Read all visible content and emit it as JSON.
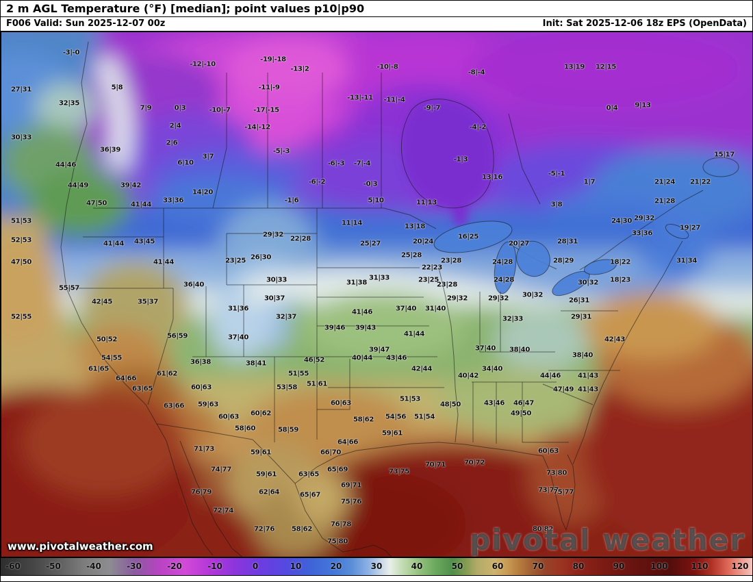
{
  "header": {
    "title": "2 m AGL Temperature (°F) [median]; point values p10|p90",
    "valid": "F006 Valid: Sun 2025-12-07 00z",
    "init": "Init: Sat 2025-12-06 18z EPS (OpenData)"
  },
  "watermark": {
    "url_text": "www.pivotalweather.com",
    "brand_text": "pivotal weather"
  },
  "colorbar": {
    "unit": "°F",
    "min": -60,
    "max": 120,
    "ticks": [
      -60,
      -50,
      -40,
      -30,
      -20,
      -10,
      0,
      10,
      20,
      30,
      40,
      50,
      60,
      70,
      80,
      90,
      100,
      110,
      120
    ],
    "stops": [
      [
        -60,
        "#2e2e2e"
      ],
      [
        -52,
        "#474747"
      ],
      [
        -46,
        "#5f5f5f"
      ],
      [
        -40,
        "#7d7d7d"
      ],
      [
        -34,
        "#8d8d91"
      ],
      [
        -28,
        "#8a5aa0"
      ],
      [
        -22,
        "#b843c2"
      ],
      [
        -16,
        "#d24ad8"
      ],
      [
        -10,
        "#b337d8"
      ],
      [
        -4,
        "#8c35dc"
      ],
      [
        2,
        "#6d3ce0"
      ],
      [
        8,
        "#5548e0"
      ],
      [
        14,
        "#3f63d8"
      ],
      [
        20,
        "#4579d8"
      ],
      [
        24,
        "#5b8fd8"
      ],
      [
        28,
        "#8fb2e4"
      ],
      [
        31,
        "#c8d8e8"
      ],
      [
        33,
        "#e9efe9"
      ],
      [
        36,
        "#c4dcb4"
      ],
      [
        40,
        "#94c17e"
      ],
      [
        44,
        "#6aa95d"
      ],
      [
        48,
        "#4f8f4a"
      ],
      [
        51,
        "#7f9b50"
      ],
      [
        54,
        "#b3ab68"
      ],
      [
        58,
        "#cdb26e"
      ],
      [
        61,
        "#c99c55"
      ],
      [
        64,
        "#b67c3e"
      ],
      [
        67,
        "#a05f33"
      ],
      [
        70,
        "#96452a"
      ],
      [
        74,
        "#9c3322"
      ],
      [
        78,
        "#8e241a"
      ],
      [
        84,
        "#7c1b14"
      ],
      [
        92,
        "#671310"
      ],
      [
        100,
        "#530d0c"
      ],
      [
        106,
        "#7e1210"
      ],
      [
        110,
        "#b03226"
      ],
      [
        114,
        "#e06a5a"
      ],
      [
        118,
        "#f0a89e"
      ],
      [
        120,
        "#f6c9c2"
      ]
    ]
  },
  "map_points": [
    [
      103,
      76,
      "-3|-0"
    ],
    [
      295,
      93,
      "-12|-10"
    ],
    [
      398,
      86,
      "-19|-18"
    ],
    [
      437,
      100,
      "-13|2"
    ],
    [
      565,
      97,
      "-10|-8"
    ],
    [
      695,
      105,
      "-8|-4"
    ],
    [
      838,
      97,
      "13|19"
    ],
    [
      884,
      97,
      "12|15"
    ],
    [
      30,
      130,
      "27|31"
    ],
    [
      170,
      127,
      "5|8"
    ],
    [
      392,
      127,
      "-11|-9"
    ],
    [
      525,
      142,
      "-13|-11"
    ],
    [
      212,
      157,
      "7|9"
    ],
    [
      262,
      157,
      "0|3"
    ],
    [
      320,
      160,
      "-10|-7"
    ],
    [
      388,
      160,
      "-17|-15"
    ],
    [
      575,
      145,
      "-11|-4"
    ],
    [
      630,
      157,
      "-9|-7"
    ],
    [
      893,
      157,
      "0|4"
    ],
    [
      938,
      153,
      "9|13"
    ],
    [
      100,
      150,
      "32|35"
    ],
    [
      30,
      200,
      "30|33"
    ],
    [
      255,
      183,
      "2|4"
    ],
    [
      375,
      185,
      "-14|-12"
    ],
    [
      697,
      185,
      "-4|-2"
    ],
    [
      250,
      208,
      "2|6"
    ],
    [
      410,
      220,
      "-5|-3"
    ],
    [
      160,
      218,
      "36|39"
    ],
    [
      1057,
      225,
      "15|17"
    ],
    [
      95,
      240,
      "44|46"
    ],
    [
      270,
      237,
      "6|10"
    ],
    [
      303,
      228,
      "3|7"
    ],
    [
      490,
      238,
      "-6|-3"
    ],
    [
      528,
      238,
      "-7|-4"
    ],
    [
      672,
      232,
      "-1|3"
    ],
    [
      190,
      270,
      "39|42"
    ],
    [
      295,
      280,
      "14|20"
    ],
    [
      462,
      265,
      "-6|-2"
    ],
    [
      540,
      268,
      "-0|3"
    ],
    [
      718,
      258,
      "13|16"
    ],
    [
      812,
      253,
      "-5|-1"
    ],
    [
      860,
      265,
      "1|7"
    ],
    [
      970,
      265,
      "21|24"
    ],
    [
      1022,
      265,
      "21|22"
    ],
    [
      113,
      270,
      "44|49"
    ],
    [
      140,
      296,
      "47|50"
    ],
    [
      205,
      298,
      "41|44"
    ],
    [
      252,
      292,
      "33|36"
    ],
    [
      425,
      292,
      "-1|6"
    ],
    [
      548,
      292,
      "5|10"
    ],
    [
      622,
      295,
      "11|13"
    ],
    [
      812,
      298,
      "3|8"
    ],
    [
      970,
      293,
      "21|28"
    ],
    [
      907,
      322,
      "24|30"
    ],
    [
      940,
      318,
      "29|32"
    ],
    [
      1007,
      332,
      "19|27"
    ],
    [
      30,
      322,
      "51|53"
    ],
    [
      513,
      325,
      "11|14"
    ],
    [
      605,
      330,
      "13|18"
    ],
    [
      398,
      342,
      "29|32"
    ],
    [
      438,
      348,
      "22|28"
    ],
    [
      617,
      352,
      "20|24"
    ],
    [
      683,
      345,
      "16|25"
    ],
    [
      757,
      355,
      "20|27"
    ],
    [
      828,
      352,
      "28|31"
    ],
    [
      937,
      340,
      "33|36"
    ],
    [
      30,
      350,
      "52|53"
    ],
    [
      165,
      355,
      "41|44"
    ],
    [
      210,
      352,
      "43|45"
    ],
    [
      540,
      355,
      "25|27"
    ],
    [
      600,
      372,
      "25|28"
    ],
    [
      343,
      380,
      "23|25"
    ],
    [
      380,
      375,
      "26|30"
    ],
    [
      630,
      390,
      "22|23"
    ],
    [
      658,
      380,
      "23|28"
    ],
    [
      733,
      382,
      "24|28"
    ],
    [
      822,
      380,
      "28|29"
    ],
    [
      905,
      382,
      "18|22"
    ],
    [
      1002,
      380,
      "31|34"
    ],
    [
      30,
      382,
      "47|50"
    ],
    [
      238,
      382,
      "41|44"
    ],
    [
      403,
      408,
      "30|33"
    ],
    [
      553,
      405,
      "31|33"
    ],
    [
      625,
      408,
      "23|25"
    ],
    [
      652,
      415,
      "23|28"
    ],
    [
      735,
      408,
      "24|28"
    ],
    [
      858,
      412,
      "30|32"
    ],
    [
      905,
      408,
      "18|23"
    ],
    [
      100,
      420,
      "55|57"
    ],
    [
      282,
      415,
      "36|40"
    ],
    [
      520,
      412,
      "31|38"
    ],
    [
      148,
      440,
      "42|45"
    ],
    [
      215,
      440,
      "35|37"
    ],
    [
      400,
      435,
      "30|37"
    ],
    [
      667,
      435,
      "29|32"
    ],
    [
      727,
      435,
      "29|32"
    ],
    [
      777,
      430,
      "30|32"
    ],
    [
      845,
      438,
      "26|31"
    ],
    [
      347,
      450,
      "31|36"
    ],
    [
      417,
      462,
      "32|37"
    ],
    [
      528,
      455,
      "41|46"
    ],
    [
      592,
      450,
      "37|40"
    ],
    [
      635,
      450,
      "31|40"
    ],
    [
      748,
      465,
      "32|33"
    ],
    [
      848,
      462,
      "29|31"
    ],
    [
      30,
      462,
      "52|55"
    ],
    [
      488,
      478,
      "39|46"
    ],
    [
      533,
      478,
      "39|43"
    ],
    [
      258,
      490,
      "56|59"
    ],
    [
      347,
      492,
      "37|40"
    ],
    [
      604,
      487,
      "41|44"
    ],
    [
      553,
      510,
      "39|47"
    ],
    [
      708,
      508,
      "37|40"
    ],
    [
      758,
      510,
      "38|40"
    ],
    [
      897,
      495,
      "42|43"
    ],
    [
      155,
      495,
      "50|52"
    ],
    [
      162,
      522,
      "54|55"
    ],
    [
      143,
      538,
      "61|65"
    ],
    [
      292,
      528,
      "36|38"
    ],
    [
      373,
      530,
      "38|41"
    ],
    [
      458,
      525,
      "46|52"
    ],
    [
      528,
      522,
      "40|44"
    ],
    [
      578,
      522,
      "43|46"
    ],
    [
      615,
      538,
      "42|44"
    ],
    [
      683,
      548,
      "40|42"
    ],
    [
      718,
      538,
      "34|40"
    ],
    [
      803,
      548,
      "44|46"
    ],
    [
      850,
      518,
      "38|40"
    ],
    [
      858,
      548,
      "41|43"
    ],
    [
      243,
      545,
      "61|62"
    ],
    [
      183,
      552,
      "64|66"
    ],
    [
      207,
      567,
      "63|65"
    ],
    [
      435,
      545,
      "51|55"
    ],
    [
      418,
      565,
      "53|58"
    ],
    [
      462,
      560,
      "51|61"
    ],
    [
      293,
      565,
      "60|63"
    ],
    [
      253,
      592,
      "63|66"
    ],
    [
      303,
      590,
      "59|63"
    ],
    [
      333,
      608,
      "60|63"
    ],
    [
      380,
      603,
      "60|62"
    ],
    [
      497,
      588,
      "60|63"
    ],
    [
      598,
      582,
      "51|53"
    ],
    [
      577,
      608,
      "54|56"
    ],
    [
      619,
      608,
      "51|54"
    ],
    [
      657,
      590,
      "48|50"
    ],
    [
      721,
      588,
      "43|46"
    ],
    [
      764,
      588,
      "46|47"
    ],
    [
      760,
      603,
      "49|50"
    ],
    [
      822,
      568,
      "47|49"
    ],
    [
      858,
      568,
      "41|43"
    ],
    [
      357,
      625,
      "58|60"
    ],
    [
      420,
      627,
      "58|59"
    ],
    [
      530,
      612,
      "58|62"
    ],
    [
      572,
      632,
      "59|61"
    ],
    [
      507,
      645,
      "64|66"
    ],
    [
      800,
      658,
      "60|63"
    ],
    [
      297,
      655,
      "71|73"
    ],
    [
      380,
      660,
      "59|61"
    ],
    [
      482,
      660,
      "66|70"
    ],
    [
      322,
      685,
      "74|77"
    ],
    [
      492,
      685,
      "65|69"
    ],
    [
      582,
      688,
      "73|75"
    ],
    [
      635,
      678,
      "70|71"
    ],
    [
      692,
      675,
      "70|72"
    ],
    [
      388,
      692,
      "59|61"
    ],
    [
      450,
      692,
      "63|65"
    ],
    [
      512,
      708,
      "69|71"
    ],
    [
      812,
      690,
      "73|80"
    ],
    [
      800,
      715,
      "73|77"
    ],
    [
      822,
      718,
      "75|77"
    ],
    [
      293,
      718,
      "76|79"
    ],
    [
      392,
      718,
      "62|64"
    ],
    [
      452,
      722,
      "65|67"
    ],
    [
      512,
      732,
      "75|76"
    ],
    [
      325,
      745,
      "72|74"
    ],
    [
      385,
      772,
      "72|76"
    ],
    [
      440,
      772,
      "58|62"
    ],
    [
      497,
      765,
      "76|78"
    ],
    [
      492,
      790,
      "75|80"
    ],
    [
      792,
      772,
      "80|82"
    ]
  ]
}
